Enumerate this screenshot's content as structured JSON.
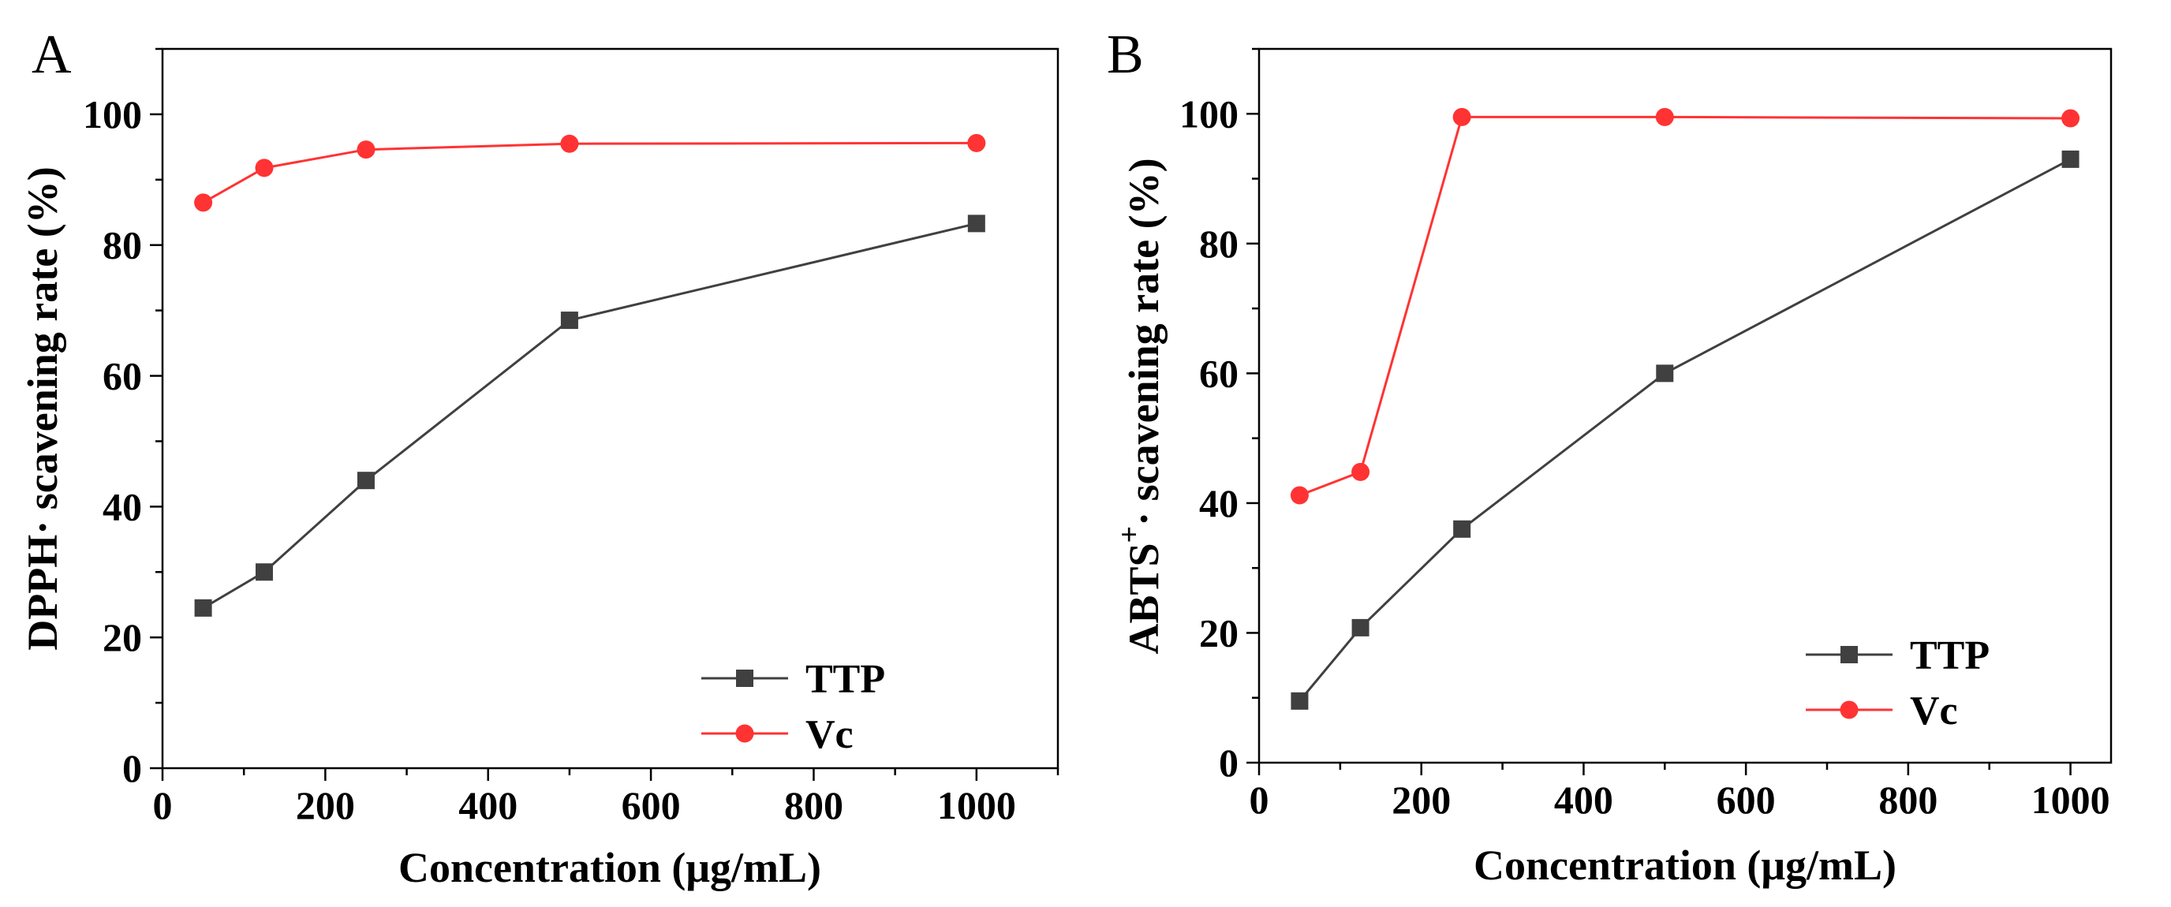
{
  "chart_data": [
    {
      "panel": "A",
      "type": "line",
      "title": "",
      "xlabel": "Concentration (μg/mL)",
      "ylabel": "DPPH· scavening rate (%)",
      "xlim": [
        0,
        1100
      ],
      "ylim": [
        0,
        110
      ],
      "xticks": [
        0,
        200,
        400,
        600,
        800,
        1000
      ],
      "yticks": [
        0,
        20,
        40,
        60,
        80,
        100
      ],
      "grid": false,
      "legend": "bottom-right",
      "x": [
        50,
        125,
        250,
        500,
        1000
      ],
      "series": [
        {
          "name": "TTP",
          "values": [
            24.5,
            30.0,
            44.0,
            68.5,
            83.3
          ],
          "color": "#404040",
          "marker": "square"
        },
        {
          "name": "Vc",
          "values": [
            86.5,
            91.8,
            94.6,
            95.5,
            95.6
          ],
          "color": "#ff3333",
          "marker": "circle"
        }
      ]
    },
    {
      "panel": "B",
      "type": "line",
      "title": "",
      "xlabel": "Concentration (μg/mL)",
      "ylabel_main": "ABTS",
      "ylabel_sup": "+",
      "ylabel_rest": "· scavening rate (%)",
      "xlim": [
        0,
        1050
      ],
      "ylim": [
        0,
        110
      ],
      "xticks": [
        0,
        200,
        400,
        600,
        800,
        1000
      ],
      "yticks": [
        0,
        20,
        40,
        60,
        80,
        100
      ],
      "grid": false,
      "legend": "bottom-right",
      "x": [
        50,
        125,
        250,
        500,
        1000
      ],
      "series": [
        {
          "name": "TTP",
          "values": [
            9.5,
            20.8,
            36.0,
            60.0,
            93.0
          ],
          "color": "#404040",
          "marker": "square"
        },
        {
          "name": "Vc",
          "values": [
            41.2,
            44.8,
            99.5,
            99.5,
            99.3
          ],
          "color": "#ff3333",
          "marker": "circle"
        }
      ]
    }
  ]
}
